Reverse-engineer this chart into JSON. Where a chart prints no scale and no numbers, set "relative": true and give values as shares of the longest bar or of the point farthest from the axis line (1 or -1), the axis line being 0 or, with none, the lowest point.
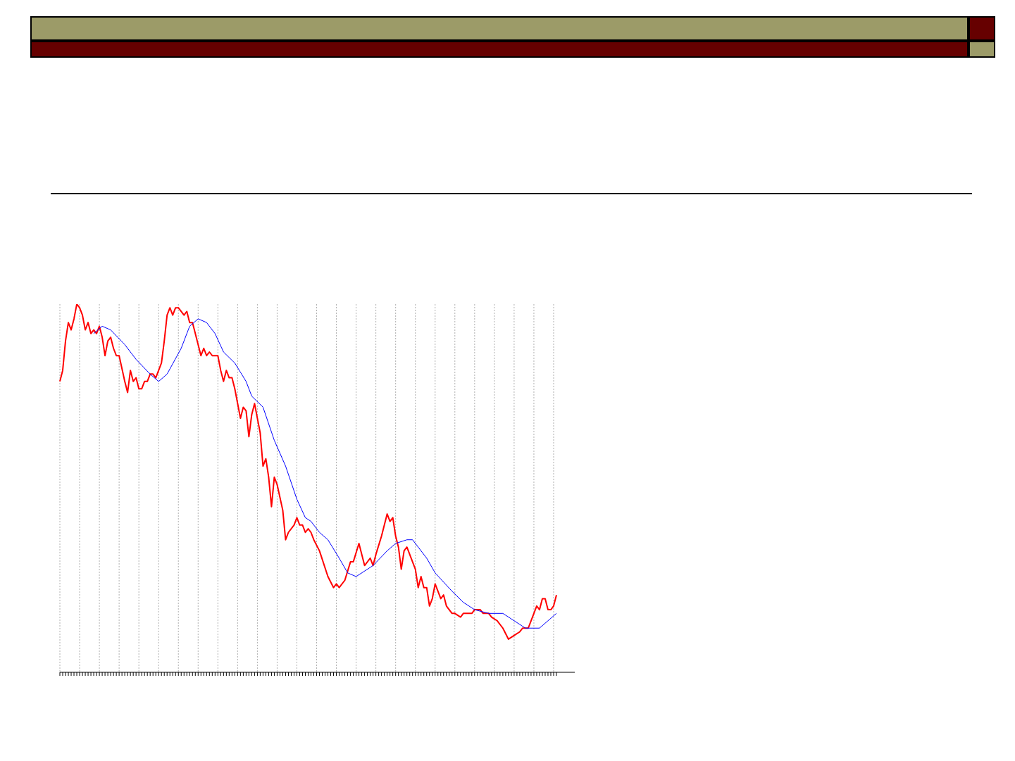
{
  "chart_data": {
    "type": "line",
    "relative": true,
    "grid": "x",
    "marker": "none",
    "line_style": "solid",
    "categories": [
      null,
      null,
      null,
      null,
      null,
      null,
      null,
      null,
      null,
      null,
      null,
      null,
      null,
      null,
      null,
      null,
      null,
      null,
      null,
      null,
      null,
      null,
      null,
      null,
      null,
      null,
      null,
      null,
      null,
      null,
      null,
      null,
      null,
      null,
      null,
      null,
      null,
      null,
      null,
      null,
      null,
      null,
      null,
      null,
      null,
      null,
      null,
      null,
      null,
      null,
      null,
      null,
      null,
      null,
      null,
      null,
      null,
      null,
      null,
      null,
      null,
      null,
      null,
      null,
      null,
      null,
      null,
      null,
      null,
      null,
      null,
      null,
      null,
      null,
      null,
      null,
      null,
      null,
      null,
      null,
      null,
      null,
      null,
      null,
      null,
      null,
      null,
      null,
      null,
      null,
      null,
      null,
      null,
      null,
      null,
      null,
      null,
      null,
      null,
      null,
      null,
      null,
      null,
      null,
      null,
      null,
      null,
      null,
      null,
      null,
      null,
      null,
      null,
      null,
      null,
      null,
      null,
      null,
      null,
      null,
      null,
      null,
      null,
      null,
      null,
      null,
      null,
      null,
      null,
      null,
      null,
      null,
      null,
      null,
      null,
      null,
      null,
      null,
      null,
      null,
      null,
      null,
      null,
      null,
      null,
      null,
      null,
      null,
      null,
      null,
      null,
      null,
      null,
      null,
      null,
      null,
      null,
      null,
      null,
      null,
      null,
      null,
      null,
      null,
      null,
      null,
      null,
      null,
      null,
      null,
      null,
      null,
      null,
      null,
      null,
      null,
      null
    ],
    "series": [
      {
        "color": "#ff0000",
        "values": [
          0.79,
          0.82,
          0.9,
          0.95,
          0.93,
          0.96,
          1.0,
          0.99,
          0.97,
          0.93,
          0.95,
          0.92,
          0.93,
          0.92,
          0.94,
          0.91,
          0.86,
          0.9,
          0.91,
          0.88,
          0.86,
          0.86,
          null,
          0.79,
          0.76,
          0.82,
          0.79,
          0.8,
          0.77,
          0.77,
          0.79,
          0.79,
          0.81,
          0.81,
          0.8,
          0.82,
          0.84,
          0.9,
          0.97,
          0.99,
          0.97,
          0.99,
          0.99,
          0.98,
          0.97,
          0.98,
          0.95,
          0.95,
          0.92,
          0.89,
          0.86,
          0.88,
          0.86,
          0.87,
          0.86,
          0.86,
          0.86,
          0.82,
          0.79,
          0.82,
          0.8,
          0.8,
          0.77,
          0.73,
          0.69,
          0.72,
          0.71,
          0.64,
          0.7,
          0.73,
          0.69,
          0.65,
          0.56,
          0.58,
          0.53,
          0.45,
          0.53,
          0.51,
          null,
          0.44,
          0.36,
          0.38,
          null,
          0.4,
          0.42,
          0.4,
          0.4,
          0.38,
          0.39,
          0.38,
          0.36,
          null,
          0.33,
          null,
          null,
          0.26,
          null,
          0.23,
          0.24,
          0.23,
          null,
          0.25,
          null,
          0.3,
          0.3,
          null,
          0.35,
          null,
          0.29,
          null,
          0.31,
          0.29,
          0.32,
          null,
          0.37,
          null,
          0.43,
          0.41,
          0.42,
          0.37,
          0.34,
          0.28,
          0.33,
          0.34,
          0.32,
          null,
          0.28,
          0.23,
          0.26,
          0.23,
          0.23,
          0.18,
          0.2,
          0.24,
          null,
          0.2,
          0.21,
          0.18,
          null,
          0.16,
          0.16,
          null,
          0.15,
          0.16,
          null,
          0.16,
          0.16,
          0.17,
          null,
          0.17,
          0.16,
          null,
          0.16,
          0.15,
          null,
          0.14,
          null,
          0.12,
          null,
          0.09,
          null,
          0.1,
          null,
          0.11,
          0.12,
          null,
          0.12,
          0.14,
          null,
          0.18,
          0.17,
          0.2,
          0.2,
          0.17,
          0.17,
          0.18,
          0.21
        ]
      },
      {
        "color": "#0000ff",
        "values": [
          null,
          null,
          null,
          null,
          null,
          null,
          null,
          null,
          null,
          null,
          null,
          null,
          0.92,
          null,
          null,
          0.94,
          null,
          null,
          0.93,
          null,
          null,
          null,
          null,
          0.89,
          null,
          null,
          null,
          0.85,
          null,
          null,
          null,
          null,
          0.81,
          null,
          null,
          0.79,
          null,
          null,
          0.81,
          null,
          null,
          null,
          null,
          0.88,
          null,
          null,
          0.94,
          null,
          null,
          0.96,
          null,
          null,
          0.95,
          null,
          null,
          0.92,
          null,
          null,
          0.87,
          null,
          null,
          null,
          0.84,
          null,
          null,
          null,
          0.79,
          null,
          0.75,
          null,
          null,
          null,
          0.72,
          null,
          null,
          null,
          0.63,
          null,
          null,
          null,
          0.56,
          null,
          null,
          null,
          0.47,
          null,
          null,
          0.42,
          null,
          0.41,
          null,
          null,
          0.38,
          null,
          null,
          0.36,
          null,
          null,
          null,
          0.31,
          null,
          null,
          0.27,
          null,
          null,
          0.26,
          null,
          null,
          null,
          null,
          null,
          0.29,
          null,
          null,
          null,
          null,
          0.33,
          null,
          null,
          0.35,
          null,
          null,
          null,
          0.36,
          null,
          0.36,
          null,
          null,
          null,
          null,
          0.31,
          null,
          null,
          0.27,
          null,
          null,
          null,
          null,
          null,
          0.22,
          null,
          null,
          null,
          0.19,
          null,
          null,
          null,
          0.17,
          null,
          null,
          null,
          null,
          0.16,
          null,
          null,
          null,
          null,
          0.16,
          null,
          null,
          null,
          0.14,
          null,
          null,
          null,
          0.12,
          null,
          null,
          null,
          null,
          0.12,
          null,
          null,
          0.14,
          null,
          null,
          0.16
        ]
      }
    ]
  }
}
